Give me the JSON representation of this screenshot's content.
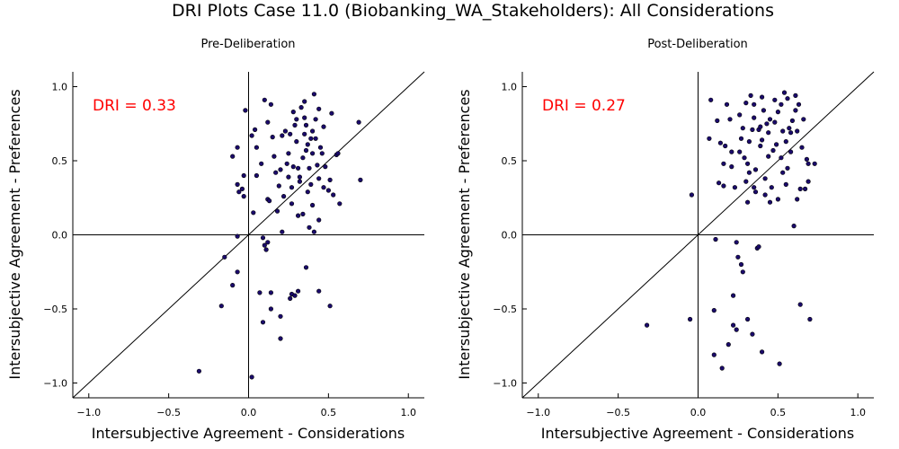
{
  "title": "DRI Plots Case 11.0 (Biobanking_WA_Stakeholders): All Considerations",
  "colors": {
    "point_fill": "#1a0a6b",
    "point_stroke": "#000000",
    "dri_text": "#ff0000",
    "line": "#000000"
  },
  "chart_data": [
    {
      "type": "scatter",
      "title": "Pre-Deliberation",
      "xlabel": "Intersubjective Agreement - Considerations",
      "ylabel": "Intersubjective Agreement - Preferences",
      "xlim": [
        -1.1,
        1.1
      ],
      "ylim": [
        -1.1,
        1.1
      ],
      "xticks": [
        "−1.0",
        "−0.5",
        "0.0",
        "0.5",
        "1.0"
      ],
      "yticks": [
        "−1.0",
        "−0.5",
        "0.0",
        "0.5",
        "1.0"
      ],
      "tick_values": [
        -1.0,
        -0.5,
        0.0,
        0.5,
        1.0
      ],
      "grid": false,
      "annotation": "DRI = 0.33",
      "reference_lines": [
        "y=x",
        "x=0",
        "y=0"
      ],
      "points": [
        [
          -0.31,
          -0.92
        ],
        [
          0.02,
          -0.96
        ],
        [
          -0.17,
          -0.48
        ],
        [
          -0.1,
          -0.34
        ],
        [
          -0.07,
          -0.25
        ],
        [
          -0.15,
          -0.15
        ],
        [
          -0.07,
          -0.01
        ],
        [
          0.09,
          -0.02
        ],
        [
          0.1,
          -0.07
        ],
        [
          0.12,
          -0.05
        ],
        [
          0.11,
          -0.1
        ],
        [
          0.07,
          -0.39
        ],
        [
          0.14,
          -0.39
        ],
        [
          0.09,
          -0.59
        ],
        [
          0.14,
          -0.5
        ],
        [
          0.2,
          -0.55
        ],
        [
          0.2,
          -0.7
        ],
        [
          0.27,
          -0.4
        ],
        [
          0.26,
          -0.43
        ],
        [
          0.29,
          -0.41
        ],
        [
          0.31,
          -0.38
        ],
        [
          0.36,
          -0.22
        ],
        [
          0.44,
          -0.38
        ],
        [
          0.51,
          -0.48
        ],
        [
          -0.1,
          0.53
        ],
        [
          -0.07,
          0.59
        ],
        [
          -0.07,
          0.34
        ],
        [
          -0.06,
          0.29
        ],
        [
          -0.04,
          0.31
        ],
        [
          -0.03,
          0.4
        ],
        [
          -0.03,
          0.26
        ],
        [
          -0.02,
          0.84
        ],
        [
          0.02,
          0.67
        ],
        [
          0.04,
          0.71
        ],
        [
          0.05,
          0.59
        ],
        [
          0.05,
          0.4
        ],
        [
          0.03,
          0.15
        ],
        [
          0.08,
          0.48
        ],
        [
          0.1,
          0.91
        ],
        [
          0.12,
          0.24
        ],
        [
          0.13,
          0.23
        ],
        [
          0.12,
          0.76
        ],
        [
          0.14,
          0.88
        ],
        [
          0.15,
          0.66
        ],
        [
          0.16,
          0.53
        ],
        [
          0.17,
          0.42
        ],
        [
          0.18,
          0.16
        ],
        [
          0.19,
          0.33
        ],
        [
          0.21,
          0.67
        ],
        [
          0.2,
          0.44
        ],
        [
          0.21,
          0.02
        ],
        [
          0.22,
          0.26
        ],
        [
          0.24,
          0.48
        ],
        [
          0.25,
          0.55
        ],
        [
          0.26,
          0.68
        ],
        [
          0.27,
          0.32
        ],
        [
          0.27,
          0.21
        ],
        [
          0.28,
          0.83
        ],
        [
          0.29,
          0.74
        ],
        [
          0.3,
          0.78
        ],
        [
          0.31,
          0.45
        ],
        [
          0.3,
          0.63
        ],
        [
          0.32,
          0.36
        ],
        [
          0.32,
          0.39
        ],
        [
          0.34,
          0.52
        ],
        [
          0.34,
          0.14
        ],
        [
          0.35,
          0.68
        ],
        [
          0.35,
          0.79
        ],
        [
          0.35,
          0.9
        ],
        [
          0.36,
          0.74
        ],
        [
          0.37,
          0.61
        ],
        [
          0.37,
          0.29
        ],
        [
          0.38,
          0.45
        ],
        [
          0.38,
          0.05
        ],
        [
          0.39,
          0.34
        ],
        [
          0.4,
          0.2
        ],
        [
          0.4,
          0.55
        ],
        [
          0.4,
          0.7
        ],
        [
          0.41,
          0.95
        ],
        [
          0.41,
          0.02
        ],
        [
          0.42,
          0.65
        ],
        [
          0.42,
          0.78
        ],
        [
          0.43,
          0.47
        ],
        [
          0.44,
          0.38
        ],
        [
          0.44,
          0.1
        ],
        [
          0.45,
          0.59
        ],
        [
          0.46,
          0.55
        ],
        [
          0.47,
          0.32
        ],
        [
          0.47,
          0.73
        ],
        [
          0.48,
          0.46
        ],
        [
          0.5,
          0.3
        ],
        [
          0.51,
          0.37
        ],
        [
          0.52,
          0.82
        ],
        [
          0.53,
          0.27
        ],
        [
          0.55,
          0.54
        ],
        [
          0.56,
          0.55
        ],
        [
          0.57,
          0.21
        ],
        [
          0.69,
          0.76
        ],
        [
          0.7,
          0.37
        ],
        [
          0.28,
          0.46
        ],
        [
          0.33,
          0.86
        ],
        [
          0.36,
          0.57
        ],
        [
          0.39,
          0.65
        ],
        [
          0.23,
          0.7
        ],
        [
          0.31,
          0.13
        ],
        [
          0.44,
          0.85
        ],
        [
          0.25,
          0.39
        ]
      ]
    },
    {
      "type": "scatter",
      "title": "Post-Deliberation",
      "xlabel": "Intersubjective Agreement - Considerations",
      "ylabel": "Intersubjective Agreement - Preferences",
      "xlim": [
        -1.1,
        1.1
      ],
      "ylim": [
        -1.1,
        1.1
      ],
      "xticks": [
        "−1.0",
        "−0.5",
        "0.0",
        "0.5",
        "1.0"
      ],
      "yticks": [
        "−1.0",
        "−0.5",
        "0.0",
        "0.5",
        "1.0"
      ],
      "tick_values": [
        -1.0,
        -0.5,
        0.0,
        0.5,
        1.0
      ],
      "grid": false,
      "annotation": "DRI = 0.27",
      "reference_lines": [
        "y=x",
        "x=0",
        "y=0"
      ],
      "points": [
        [
          -0.32,
          -0.61
        ],
        [
          -0.05,
          -0.57
        ],
        [
          -0.04,
          0.27
        ],
        [
          0.08,
          0.91
        ],
        [
          0.07,
          0.65
        ],
        [
          0.1,
          -0.51
        ],
        [
          0.1,
          -0.81
        ],
        [
          0.11,
          -0.03
        ],
        [
          0.12,
          0.77
        ],
        [
          0.13,
          0.35
        ],
        [
          0.14,
          0.62
        ],
        [
          0.15,
          -0.9
        ],
        [
          0.16,
          0.33
        ],
        [
          0.16,
          0.48
        ],
        [
          0.17,
          0.6
        ],
        [
          0.18,
          0.88
        ],
        [
          0.19,
          -0.74
        ],
        [
          0.2,
          0.78
        ],
        [
          0.21,
          0.56
        ],
        [
          0.21,
          0.46
        ],
        [
          0.22,
          -0.41
        ],
        [
          0.22,
          -0.61
        ],
        [
          0.23,
          0.32
        ],
        [
          0.24,
          -0.05
        ],
        [
          0.24,
          -0.64
        ],
        [
          0.25,
          -0.15
        ],
        [
          0.26,
          0.81
        ],
        [
          0.27,
          0.65
        ],
        [
          0.27,
          -0.2
        ],
        [
          0.28,
          0.72
        ],
        [
          0.28,
          -0.25
        ],
        [
          0.29,
          0.52
        ],
        [
          0.3,
          0.36
        ],
        [
          0.3,
          0.89
        ],
        [
          0.31,
          0.22
        ],
        [
          0.31,
          0.48
        ],
        [
          0.31,
          -0.57
        ],
        [
          0.32,
          0.63
        ],
        [
          0.32,
          0.42
        ],
        [
          0.33,
          0.94
        ],
        [
          0.34,
          -0.67
        ],
        [
          0.34,
          0.71
        ],
        [
          0.35,
          0.32
        ],
        [
          0.35,
          0.79
        ],
        [
          0.36,
          0.44
        ],
        [
          0.36,
          0.29
        ],
        [
          0.37,
          -0.09
        ],
        [
          0.38,
          0.71
        ],
        [
          0.38,
          -0.08
        ],
        [
          0.39,
          0.73
        ],
        [
          0.39,
          0.6
        ],
        [
          0.4,
          0.93
        ],
        [
          0.4,
          -0.79
        ],
        [
          0.41,
          0.84
        ],
        [
          0.42,
          0.38
        ],
        [
          0.43,
          0.75
        ],
        [
          0.44,
          0.69
        ],
        [
          0.44,
          0.53
        ],
        [
          0.45,
          0.22
        ],
        [
          0.46,
          0.32
        ],
        [
          0.47,
          0.57
        ],
        [
          0.48,
          0.76
        ],
        [
          0.49,
          0.61
        ],
        [
          0.5,
          0.83
        ],
        [
          0.5,
          0.24
        ],
        [
          0.51,
          -0.87
        ],
        [
          0.52,
          0.88
        ],
        [
          0.53,
          0.7
        ],
        [
          0.54,
          0.96
        ],
        [
          0.55,
          0.34
        ],
        [
          0.55,
          0.63
        ],
        [
          0.56,
          0.45
        ],
        [
          0.56,
          0.92
        ],
        [
          0.57,
          0.72
        ],
        [
          0.58,
          0.56
        ],
        [
          0.59,
          0.77
        ],
        [
          0.6,
          0.06
        ],
        [
          0.61,
          0.84
        ],
        [
          0.61,
          0.94
        ],
        [
          0.62,
          0.7
        ],
        [
          0.63,
          0.88
        ],
        [
          0.64,
          0.31
        ],
        [
          0.64,
          -0.47
        ],
        [
          0.65,
          0.59
        ],
        [
          0.66,
          0.78
        ],
        [
          0.67,
          0.31
        ],
        [
          0.68,
          0.51
        ],
        [
          0.69,
          0.36
        ],
        [
          0.69,
          0.48
        ],
        [
          0.7,
          -0.57
        ],
        [
          0.73,
          0.48
        ],
        [
          0.45,
          0.78
        ],
        [
          0.52,
          0.52
        ],
        [
          0.35,
          0.88
        ],
        [
          0.58,
          0.69
        ],
        [
          0.42,
          0.27
        ],
        [
          0.48,
          0.91
        ],
        [
          0.26,
          0.56
        ],
        [
          0.53,
          0.42
        ],
        [
          0.62,
          0.24
        ],
        [
          0.4,
          0.64
        ]
      ]
    }
  ]
}
